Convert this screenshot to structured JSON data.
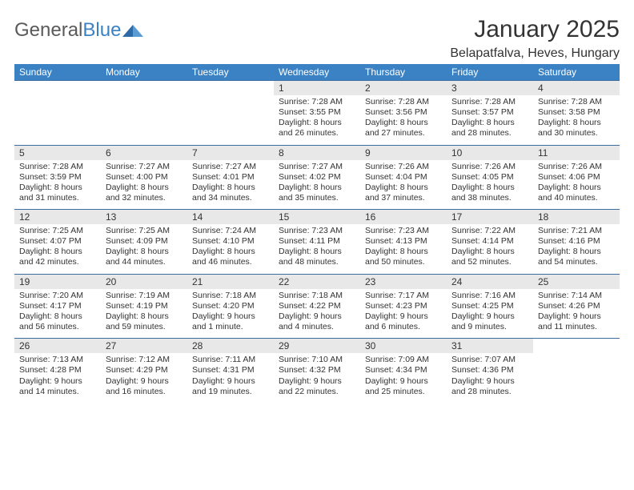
{
  "brand": {
    "word1": "General",
    "word2": "Blue"
  },
  "title": "January 2025",
  "location": "Belapatfalva, Heves, Hungary",
  "colors": {
    "header_bg": "#3b82c4",
    "header_text": "#ffffff",
    "daynum_bg": "#e8e8e8",
    "border": "#3b6ea0",
    "text": "#333333",
    "logo_gray": "#5a5a5a",
    "logo_blue": "#3b82c4",
    "page_bg": "#ffffff"
  },
  "typography": {
    "title_fontsize": 30,
    "location_fontsize": 16,
    "header_fontsize": 12,
    "daynum_fontsize": 12,
    "cell_fontsize": 10.5
  },
  "day_headers": [
    "Sunday",
    "Monday",
    "Tuesday",
    "Wednesday",
    "Thursday",
    "Friday",
    "Saturday"
  ],
  "weeks": [
    [
      {
        "num": "",
        "lines": []
      },
      {
        "num": "",
        "lines": []
      },
      {
        "num": "",
        "lines": []
      },
      {
        "num": "1",
        "lines": [
          "Sunrise: 7:28 AM",
          "Sunset: 3:55 PM",
          "Daylight: 8 hours",
          "and 26 minutes."
        ]
      },
      {
        "num": "2",
        "lines": [
          "Sunrise: 7:28 AM",
          "Sunset: 3:56 PM",
          "Daylight: 8 hours",
          "and 27 minutes."
        ]
      },
      {
        "num": "3",
        "lines": [
          "Sunrise: 7:28 AM",
          "Sunset: 3:57 PM",
          "Daylight: 8 hours",
          "and 28 minutes."
        ]
      },
      {
        "num": "4",
        "lines": [
          "Sunrise: 7:28 AM",
          "Sunset: 3:58 PM",
          "Daylight: 8 hours",
          "and 30 minutes."
        ]
      }
    ],
    [
      {
        "num": "5",
        "lines": [
          "Sunrise: 7:28 AM",
          "Sunset: 3:59 PM",
          "Daylight: 8 hours",
          "and 31 minutes."
        ]
      },
      {
        "num": "6",
        "lines": [
          "Sunrise: 7:27 AM",
          "Sunset: 4:00 PM",
          "Daylight: 8 hours",
          "and 32 minutes."
        ]
      },
      {
        "num": "7",
        "lines": [
          "Sunrise: 7:27 AM",
          "Sunset: 4:01 PM",
          "Daylight: 8 hours",
          "and 34 minutes."
        ]
      },
      {
        "num": "8",
        "lines": [
          "Sunrise: 7:27 AM",
          "Sunset: 4:02 PM",
          "Daylight: 8 hours",
          "and 35 minutes."
        ]
      },
      {
        "num": "9",
        "lines": [
          "Sunrise: 7:26 AM",
          "Sunset: 4:04 PM",
          "Daylight: 8 hours",
          "and 37 minutes."
        ]
      },
      {
        "num": "10",
        "lines": [
          "Sunrise: 7:26 AM",
          "Sunset: 4:05 PM",
          "Daylight: 8 hours",
          "and 38 minutes."
        ]
      },
      {
        "num": "11",
        "lines": [
          "Sunrise: 7:26 AM",
          "Sunset: 4:06 PM",
          "Daylight: 8 hours",
          "and 40 minutes."
        ]
      }
    ],
    [
      {
        "num": "12",
        "lines": [
          "Sunrise: 7:25 AM",
          "Sunset: 4:07 PM",
          "Daylight: 8 hours",
          "and 42 minutes."
        ]
      },
      {
        "num": "13",
        "lines": [
          "Sunrise: 7:25 AM",
          "Sunset: 4:09 PM",
          "Daylight: 8 hours",
          "and 44 minutes."
        ]
      },
      {
        "num": "14",
        "lines": [
          "Sunrise: 7:24 AM",
          "Sunset: 4:10 PM",
          "Daylight: 8 hours",
          "and 46 minutes."
        ]
      },
      {
        "num": "15",
        "lines": [
          "Sunrise: 7:23 AM",
          "Sunset: 4:11 PM",
          "Daylight: 8 hours",
          "and 48 minutes."
        ]
      },
      {
        "num": "16",
        "lines": [
          "Sunrise: 7:23 AM",
          "Sunset: 4:13 PM",
          "Daylight: 8 hours",
          "and 50 minutes."
        ]
      },
      {
        "num": "17",
        "lines": [
          "Sunrise: 7:22 AM",
          "Sunset: 4:14 PM",
          "Daylight: 8 hours",
          "and 52 minutes."
        ]
      },
      {
        "num": "18",
        "lines": [
          "Sunrise: 7:21 AM",
          "Sunset: 4:16 PM",
          "Daylight: 8 hours",
          "and 54 minutes."
        ]
      }
    ],
    [
      {
        "num": "19",
        "lines": [
          "Sunrise: 7:20 AM",
          "Sunset: 4:17 PM",
          "Daylight: 8 hours",
          "and 56 minutes."
        ]
      },
      {
        "num": "20",
        "lines": [
          "Sunrise: 7:19 AM",
          "Sunset: 4:19 PM",
          "Daylight: 8 hours",
          "and 59 minutes."
        ]
      },
      {
        "num": "21",
        "lines": [
          "Sunrise: 7:18 AM",
          "Sunset: 4:20 PM",
          "Daylight: 9 hours",
          "and 1 minute."
        ]
      },
      {
        "num": "22",
        "lines": [
          "Sunrise: 7:18 AM",
          "Sunset: 4:22 PM",
          "Daylight: 9 hours",
          "and 4 minutes."
        ]
      },
      {
        "num": "23",
        "lines": [
          "Sunrise: 7:17 AM",
          "Sunset: 4:23 PM",
          "Daylight: 9 hours",
          "and 6 minutes."
        ]
      },
      {
        "num": "24",
        "lines": [
          "Sunrise: 7:16 AM",
          "Sunset: 4:25 PM",
          "Daylight: 9 hours",
          "and 9 minutes."
        ]
      },
      {
        "num": "25",
        "lines": [
          "Sunrise: 7:14 AM",
          "Sunset: 4:26 PM",
          "Daylight: 9 hours",
          "and 11 minutes."
        ]
      }
    ],
    [
      {
        "num": "26",
        "lines": [
          "Sunrise: 7:13 AM",
          "Sunset: 4:28 PM",
          "Daylight: 9 hours",
          "and 14 minutes."
        ]
      },
      {
        "num": "27",
        "lines": [
          "Sunrise: 7:12 AM",
          "Sunset: 4:29 PM",
          "Daylight: 9 hours",
          "and 16 minutes."
        ]
      },
      {
        "num": "28",
        "lines": [
          "Sunrise: 7:11 AM",
          "Sunset: 4:31 PM",
          "Daylight: 9 hours",
          "and 19 minutes."
        ]
      },
      {
        "num": "29",
        "lines": [
          "Sunrise: 7:10 AM",
          "Sunset: 4:32 PM",
          "Daylight: 9 hours",
          "and 22 minutes."
        ]
      },
      {
        "num": "30",
        "lines": [
          "Sunrise: 7:09 AM",
          "Sunset: 4:34 PM",
          "Daylight: 9 hours",
          "and 25 minutes."
        ]
      },
      {
        "num": "31",
        "lines": [
          "Sunrise: 7:07 AM",
          "Sunset: 4:36 PM",
          "Daylight: 9 hours",
          "and 28 minutes."
        ]
      },
      {
        "num": "",
        "lines": []
      }
    ]
  ]
}
